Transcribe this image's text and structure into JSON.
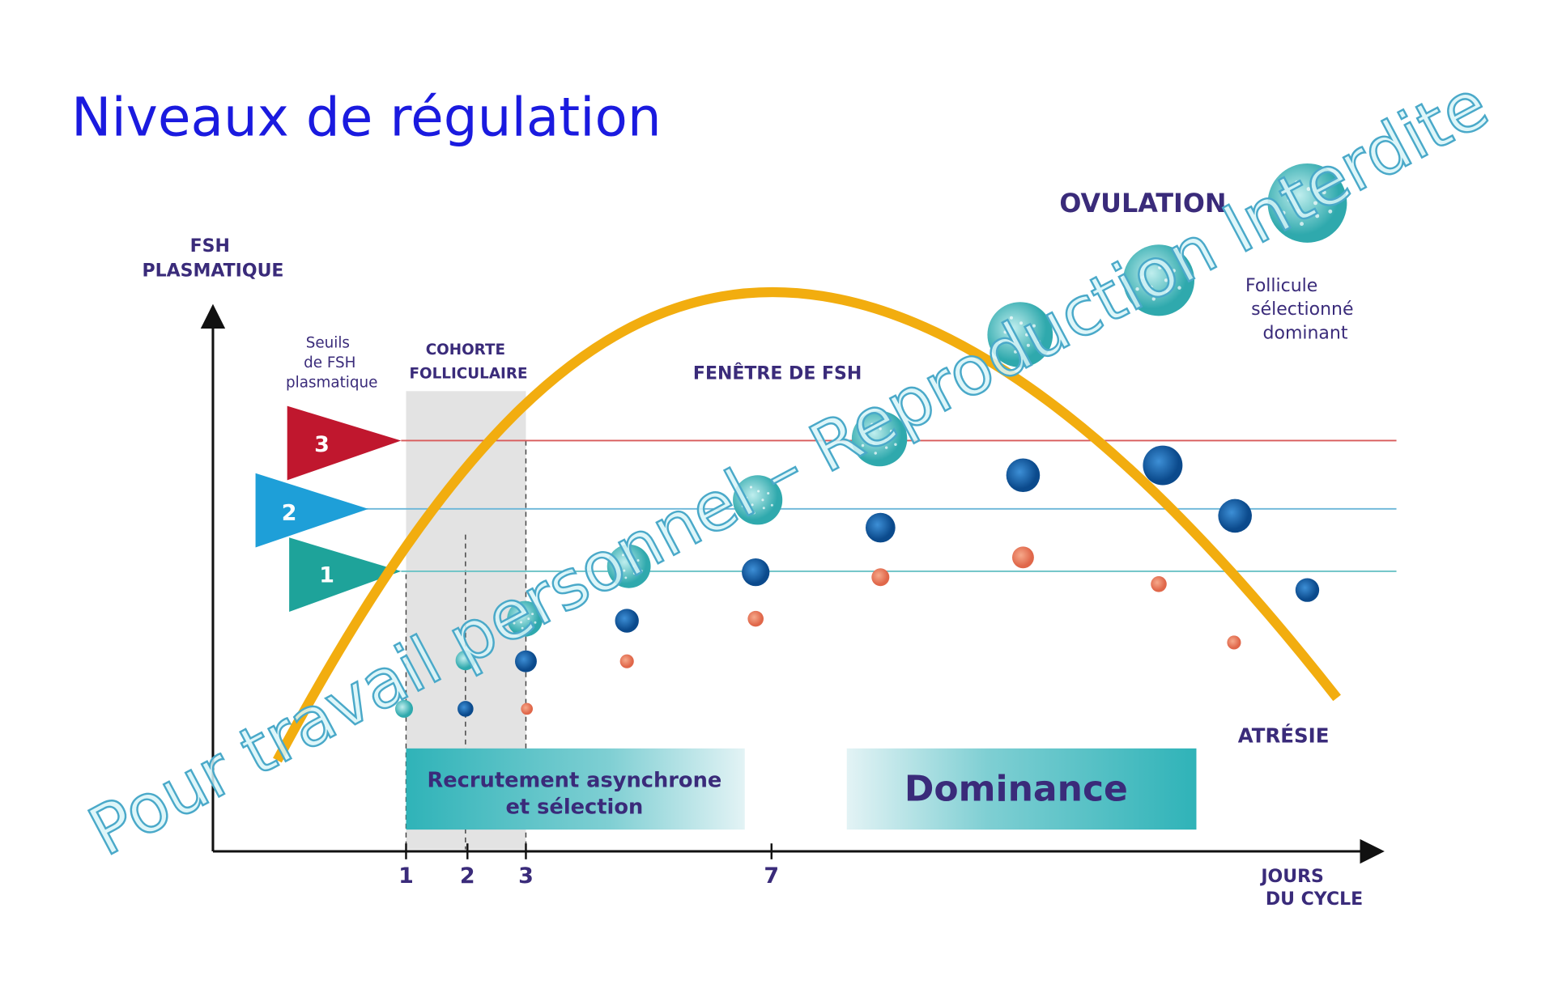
{
  "header": {
    "title": "Niveaux de régulation"
  },
  "diagram": {
    "y_axis_label": [
      "FSH",
      "PLASMATIQUE"
    ],
    "x_axis_label": [
      "JOURS",
      "DU CYCLE"
    ],
    "x_ticks": [
      "1",
      "2",
      "3",
      "7"
    ],
    "threshold_title": [
      "Seuils",
      "de FSH",
      "plasmatique"
    ],
    "thresholds": [
      "3",
      "2",
      "1"
    ],
    "cohort_label": [
      "COHORTE",
      "FOLLICULAIRE"
    ],
    "window_label": "FENÊTRE DE FSH",
    "ovulation_label": "OVULATION",
    "dominant_label": [
      "Follicule",
      "sélectionné",
      "dominant"
    ],
    "atresia_label": "ATRÉSIE",
    "recruitment_box": [
      "Recrutement asynchrone",
      "et sélection"
    ],
    "dominance_box": "Dominance",
    "watermark": "Pour travail personnel – Reproduction Interdite"
  }
}
